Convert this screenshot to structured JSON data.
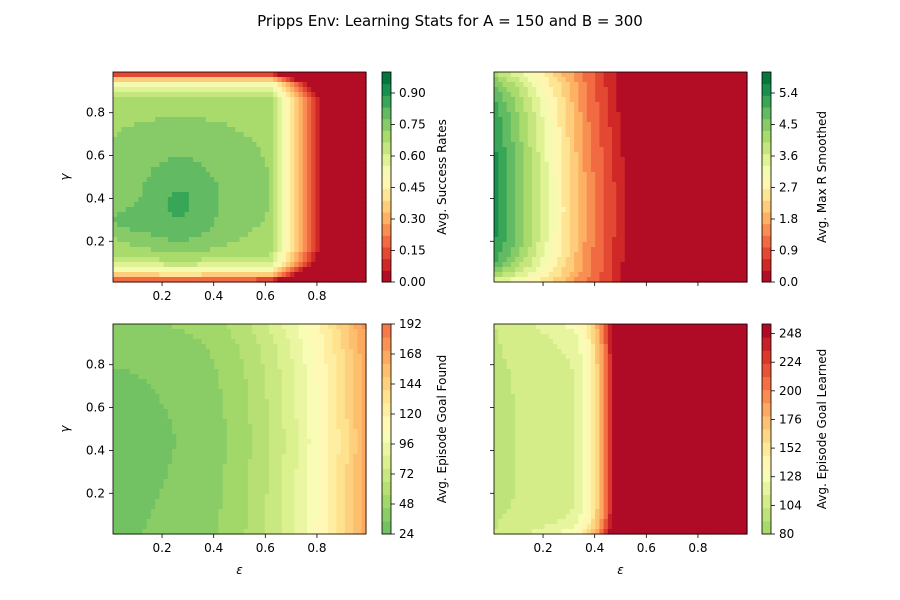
{
  "title": "Pripps Env: Learning Stats for A = 150 and B = 300",
  "chart_data": [
    {
      "type": "heatmap",
      "xlabel": "",
      "ylabel": "γ",
      "xlim": [
        0.01,
        0.99
      ],
      "ylim": [
        0.01,
        0.99
      ],
      "x_ticks": [
        "",
        "0.2",
        "0.4",
        "0.6",
        "0.8"
      ],
      "y_ticks": [
        "0.2",
        "0.4",
        "0.6",
        "0.8"
      ],
      "colormap": "RdYlGn",
      "colorbar": {
        "label": "Avg. Success Rates",
        "min": 0.0,
        "max": 1.0,
        "ticks": [
          "0.00",
          "0.15",
          "0.30",
          "0.45",
          "0.60",
          "0.75",
          "0.90"
        ],
        "tick_values": [
          0.0,
          0.15,
          0.3,
          0.45,
          0.6,
          0.75,
          0.9
        ]
      }
    },
    {
      "type": "heatmap",
      "xlabel": "",
      "ylabel": "",
      "xlim": [
        0.01,
        0.99
      ],
      "ylim": [
        0.01,
        0.99
      ],
      "x_ticks": [
        "",
        "",
        "",
        "",
        ""
      ],
      "y_ticks": [
        "",
        "",
        "",
        ""
      ],
      "colormap": "RdYlGn",
      "colorbar": {
        "label": "Avg. Max R Smoothed",
        "min": 0.0,
        "max": 6.0,
        "ticks": [
          "0.0",
          "0.9",
          "1.8",
          "2.7",
          "3.6",
          "4.5",
          "5.4"
        ],
        "tick_values": [
          0.0,
          0.9,
          1.8,
          2.7,
          3.6,
          4.5,
          5.4
        ]
      }
    },
    {
      "type": "heatmap",
      "xlabel": "ε",
      "ylabel": "γ",
      "xlim": [
        0.01,
        0.99
      ],
      "ylim": [
        0.01,
        0.99
      ],
      "x_ticks": [
        "0.2",
        "0.4",
        "0.6",
        "0.8"
      ],
      "y_ticks": [
        "0.2",
        "0.4",
        "0.6",
        "0.8"
      ],
      "colormap": "RdYlGn_r (truncated)",
      "colorbar": {
        "label": "Avg. Episode Goal Found",
        "min": 24,
        "max": 192,
        "ticks": [
          "24",
          "48",
          "72",
          "96",
          "120",
          "144",
          "168",
          "192"
        ],
        "tick_values": [
          24,
          48,
          72,
          96,
          120,
          144,
          168,
          192
        ]
      }
    },
    {
      "type": "heatmap",
      "xlabel": "ε",
      "ylabel": "",
      "xlim": [
        0.01,
        0.99
      ],
      "ylim": [
        0.01,
        0.99
      ],
      "x_ticks": [
        "0.2",
        "0.4",
        "0.6",
        "0.8"
      ],
      "y_ticks": [
        "",
        "",
        "",
        ""
      ],
      "colormap": "RdYlGn_r (truncated)",
      "colorbar": {
        "label": "Avg. Episode Goal Learned",
        "min": 80,
        "max": 256,
        "ticks": [
          "80",
          "104",
          "128",
          "152",
          "176",
          "200",
          "224",
          "248"
        ],
        "tick_values": [
          80,
          104,
          128,
          152,
          176,
          200,
          224,
          248
        ]
      }
    }
  ]
}
